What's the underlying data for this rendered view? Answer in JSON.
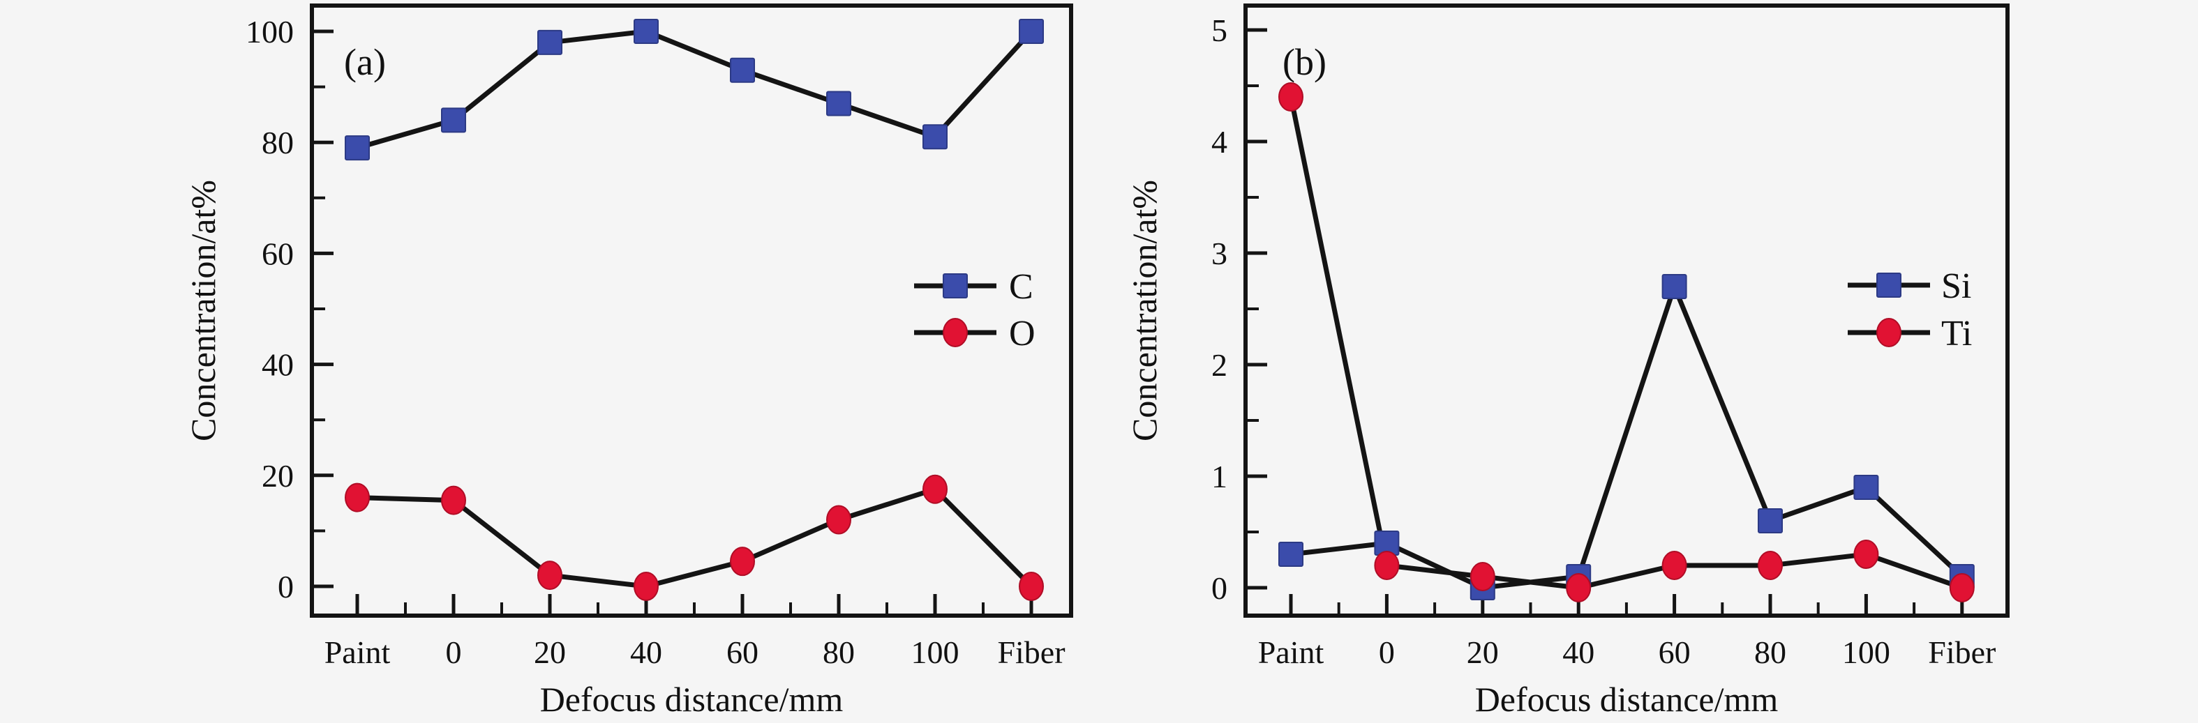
{
  "figure": {
    "background": "#f5f5f5",
    "frame_color": "#141414",
    "line_color": "#141414"
  },
  "chart_data": [
    {
      "type": "line",
      "panel_label": "(a)",
      "xlabel": "Defocus distance/mm",
      "ylabel": "Concentration/at%",
      "categories": [
        "Paint",
        "0",
        "20",
        "40",
        "60",
        "80",
        "100",
        "Fiber"
      ],
      "ylim": [
        0,
        100
      ],
      "yticks": [
        0,
        20,
        40,
        60,
        80,
        100
      ],
      "y_minor_step": 10,
      "grid": false,
      "legend_position": "middle-right",
      "series": [
        {
          "name": "C",
          "marker": "square",
          "color": "#3b4cab",
          "edge": "#2c3a85",
          "values": [
            79,
            84,
            98,
            100,
            93,
            87,
            81,
            100
          ]
        },
        {
          "name": "O",
          "marker": "circle",
          "color": "#e11233",
          "edge": "#b00d26",
          "values": [
            16,
            15.5,
            2,
            0,
            4.5,
            12,
            17.5,
            0
          ]
        }
      ]
    },
    {
      "type": "line",
      "panel_label": "(b)",
      "xlabel": "Defocus distance/mm",
      "ylabel": "Concentration/at%",
      "categories": [
        "Paint",
        "0",
        "20",
        "40",
        "60",
        "80",
        "100",
        "Fiber"
      ],
      "ylim": [
        0,
        5
      ],
      "yticks": [
        0,
        1,
        2,
        3,
        4,
        5
      ],
      "y_minor_step": 0.5,
      "grid": false,
      "legend_position": "middle-right",
      "series": [
        {
          "name": "Si",
          "marker": "square",
          "color": "#3b4cab",
          "edge": "#2c3a85",
          "values": [
            0.3,
            0.4,
            0,
            0.1,
            2.7,
            0.6,
            0.9,
            0.1
          ]
        },
        {
          "name": "Ti",
          "marker": "circle",
          "color": "#e11233",
          "edge": "#b00d26",
          "values": [
            4.4,
            0.2,
            0.1,
            0,
            0.2,
            0.2,
            0.3,
            0
          ]
        }
      ]
    }
  ]
}
